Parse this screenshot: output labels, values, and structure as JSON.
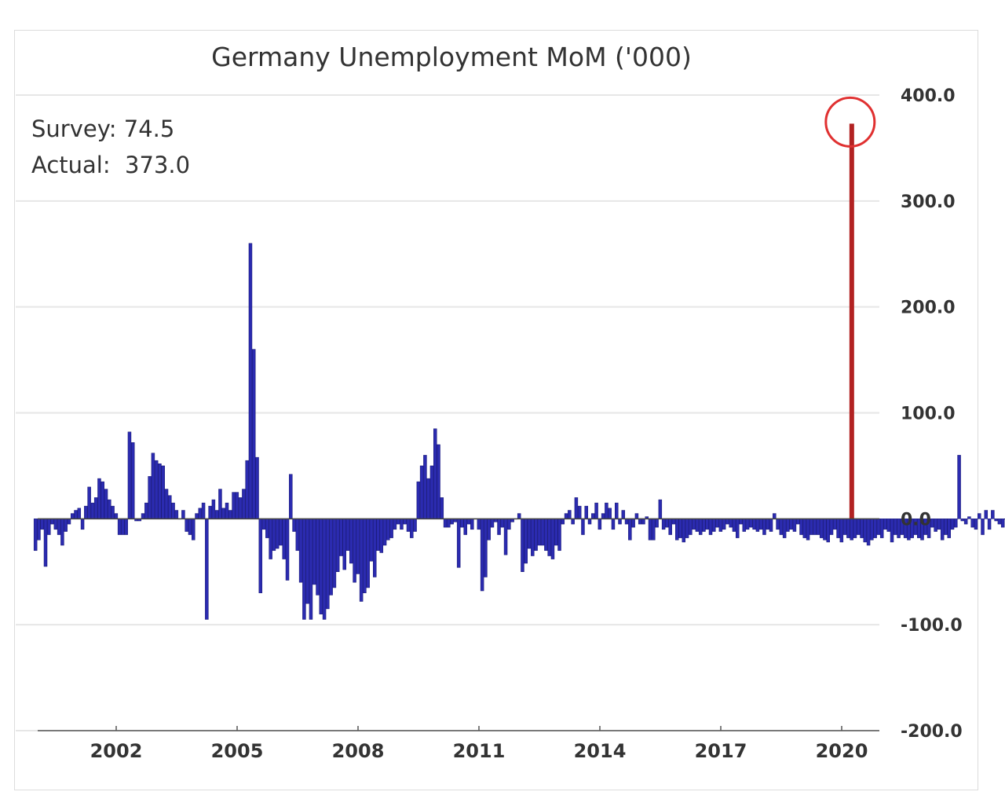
{
  "chart_data": {
    "type": "bar",
    "title": "Germany Unemployment MoM ('000)",
    "annotations": {
      "survey": "Survey: 74.5",
      "actual": "Actual:  373.0"
    },
    "ylim": [
      -200,
      400
    ],
    "yticks": [
      400,
      300,
      200,
      100,
      0,
      -100,
      -200
    ],
    "ytick_labels": [
      "400.0",
      "300.0",
      "200.0",
      "100.0",
      "0.0",
      "-100.0",
      "-200.0"
    ],
    "xticks": [
      "2002",
      "2005",
      "2008",
      "2011",
      "2014",
      "2017",
      "2020"
    ],
    "xtick_years": [
      2002,
      2005,
      2008,
      2011,
      2014,
      2017,
      2020
    ],
    "grid": true,
    "x_start": "2000-01",
    "series": [
      {
        "color": "#2b2bb0",
        "values": [
          -30,
          -20,
          -10,
          -45,
          -15,
          -5,
          -10,
          -15,
          -25,
          -12,
          -5,
          5,
          8,
          10,
          -10,
          12,
          30,
          15,
          20,
          38,
          35,
          28,
          18,
          12,
          5,
          -15,
          -15,
          -15,
          82,
          72,
          -2,
          -2,
          5,
          15,
          40,
          62,
          55,
          52,
          50,
          28,
          22,
          15,
          8,
          0,
          8,
          -12,
          -15,
          -20,
          5,
          10,
          15,
          -95,
          12,
          18,
          8,
          28,
          10,
          15,
          8,
          25,
          25,
          20,
          28,
          55,
          260,
          160,
          58,
          -70,
          -10,
          -18,
          -38,
          -30,
          -28,
          -25,
          -38,
          -58,
          42,
          -12,
          -30,
          -60,
          -95,
          -80,
          -95,
          -62,
          -72,
          -90,
          -95,
          -85,
          -72,
          -65,
          -50,
          -35,
          -48,
          -30,
          -42,
          -60,
          -52,
          -78,
          -70,
          -65,
          -40,
          -55,
          -30,
          -32,
          -25,
          -20,
          -18,
          -10,
          -5,
          -10,
          -5,
          -12,
          -18,
          -12,
          35,
          50,
          60,
          38,
          50,
          85,
          70,
          20,
          -8,
          -8,
          -5,
          -3,
          -46,
          -8,
          -15,
          -5,
          -10,
          0,
          -10,
          -68,
          -55,
          -20,
          -8,
          -3,
          -15,
          -8,
          -34,
          -10,
          -3,
          0,
          5,
          -50,
          -42,
          -28,
          -35,
          -30,
          -25,
          -25,
          -30,
          -35,
          -38,
          -25,
          -30,
          -5,
          5,
          8,
          -5,
          20,
          12,
          -15,
          12,
          -5,
          5,
          15,
          -10,
          5,
          15,
          10,
          -10,
          15,
          -5,
          8,
          -5,
          -20,
          -8,
          5,
          -5,
          -5,
          2,
          -20,
          -20,
          -8,
          18,
          -10,
          -8,
          -15,
          -5,
          -20,
          -18,
          -22,
          -18,
          -15,
          -10,
          -12,
          -15,
          -12,
          -10,
          -15,
          -12,
          -8,
          -12,
          -10,
          -5,
          -8,
          -12,
          -18,
          -5,
          -12,
          -10,
          -8,
          -10,
          -12,
          -10,
          -15,
          -10,
          -12,
          5,
          -10,
          -15,
          -18,
          -12,
          -10,
          -12,
          -5,
          -15,
          -18,
          -20,
          -15,
          -15,
          -15,
          -18,
          -20,
          -22,
          -15,
          -10,
          -18,
          -22,
          -15,
          -18,
          -20,
          -18,
          -15,
          -18,
          -22,
          -25,
          -20,
          -18,
          -15,
          -18,
          -10,
          -12,
          -22,
          -15,
          -18,
          -15,
          -18,
          -20,
          -18,
          -15,
          -18,
          -20,
          -15,
          -18,
          -8,
          -12,
          -10,
          -20,
          -15,
          -18,
          -10,
          -8,
          60,
          -2,
          -5,
          2,
          -8,
          -10,
          5,
          -15,
          8,
          -10,
          8,
          -2,
          -5,
          -8,
          0,
          0
        ]
      }
    ],
    "highlight": {
      "color": "#b22222",
      "date": "2020-04",
      "value": 373
    }
  }
}
